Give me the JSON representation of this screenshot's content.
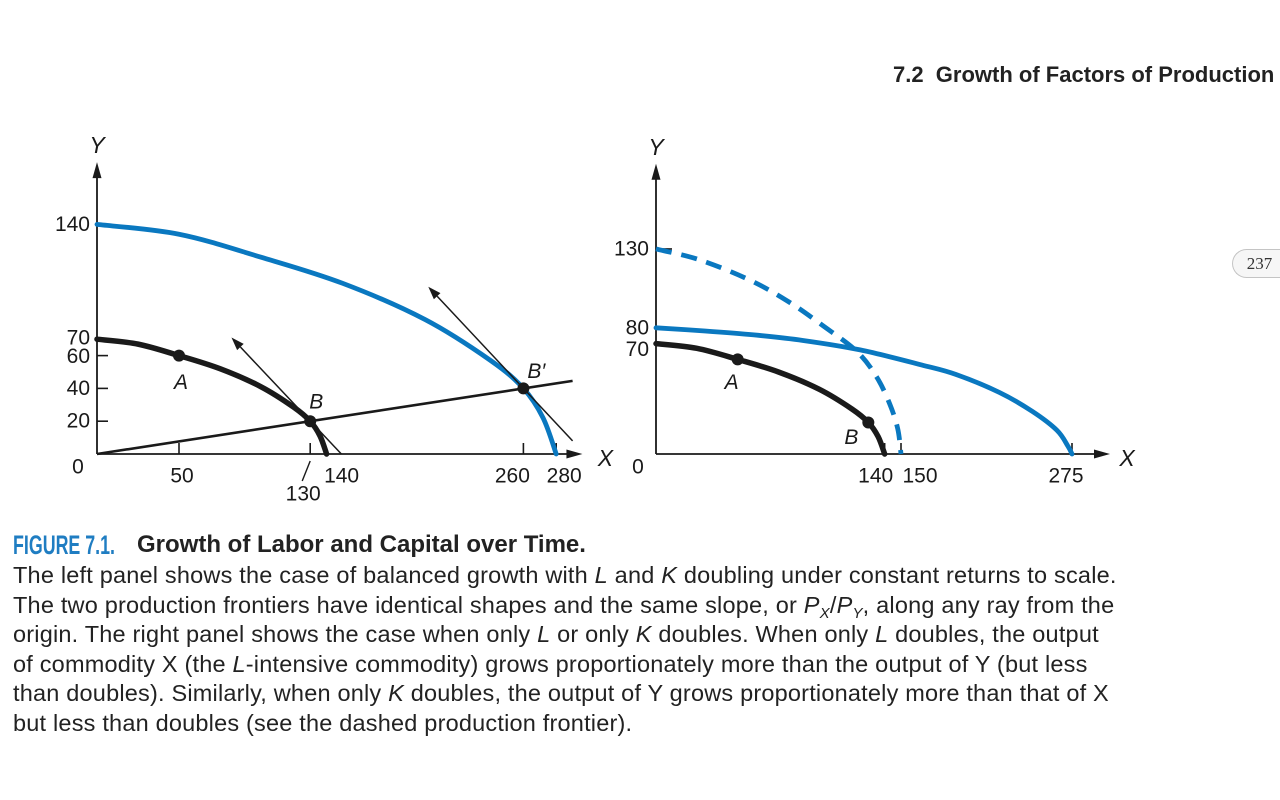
{
  "page": {
    "section_header": "7.2  Growth of Factors of Production",
    "page_number": "237"
  },
  "colors": {
    "caption_label_blue": "#1f7dc2",
    "frontier_blue": "#0a78c0",
    "ink": "#1a1a1a"
  },
  "caption": {
    "label": "FIGURE 7.1.",
    "title": "Growth of Labor and Capital over Time.",
    "body_lines": [
      [
        {
          "text": "The left panel shows the case of balanced growth with "
        },
        {
          "text": "L",
          "italic": true
        },
        {
          "text": " and "
        },
        {
          "text": "K",
          "italic": true
        },
        {
          "text": " doubling under constant returns to scale."
        }
      ],
      [
        {
          "text": "The two production frontiers have identical shapes and the same slope, or "
        },
        {
          "text": "P",
          "italic": true
        },
        {
          "text": "X",
          "italic": true,
          "sub": true
        },
        {
          "text": "/"
        },
        {
          "text": "P",
          "italic": true
        },
        {
          "text": "Y",
          "italic": true,
          "sub": true
        },
        {
          "text": ", along any ray from the"
        }
      ],
      [
        {
          "text": "origin. The right panel shows the case when only "
        },
        {
          "text": "L",
          "italic": true
        },
        {
          "text": " or only "
        },
        {
          "text": "K",
          "italic": true
        },
        {
          "text": " doubles. When only "
        },
        {
          "text": "L",
          "italic": true
        },
        {
          "text": " doubles, the output"
        }
      ],
      [
        {
          "text": "of commodity X (the "
        },
        {
          "text": "L",
          "italic": true
        },
        {
          "text": "-intensive commodity) grows proportionately more than the output of Y (but less"
        }
      ],
      [
        {
          "text": "than doubles). Similarly, when only "
        },
        {
          "text": "K",
          "italic": true
        },
        {
          "text": " doubles, the output of Y grows proportionately more than that of X"
        }
      ],
      [
        {
          "text": "but less than doubles (see the dashed production frontier)."
        }
      ]
    ]
  },
  "chart_data": [
    {
      "panel": "left",
      "type": "line",
      "title": "",
      "xlabel": "X",
      "ylabel": "Y",
      "origin_label": "0",
      "xlim": [
        0,
        296
      ],
      "ylim": [
        0,
        178
      ],
      "grid": false,
      "x_ticks": [
        50,
        130,
        140,
        260,
        280
      ],
      "y_ticks": [
        20,
        40,
        60,
        70,
        140
      ],
      "series": [
        {
          "name": "original production frontier",
          "style": "solid",
          "color": "#1a1a1a",
          "points": [
            [
              0,
              70
            ],
            [
              25,
              67
            ],
            [
              50,
              60
            ],
            [
              75,
              52
            ],
            [
              100,
              41
            ],
            [
              120,
              28.5
            ],
            [
              130,
              20
            ],
            [
              136,
              11
            ],
            [
              140,
              0
            ]
          ]
        },
        {
          "name": "frontier after L and K double",
          "style": "solid",
          "color": "#0a78c0",
          "points": [
            [
              0,
              140
            ],
            [
              50,
              134
            ],
            [
              100,
              120
            ],
            [
              150,
              104
            ],
            [
              200,
              82
            ],
            [
              240,
              57
            ],
            [
              260,
              40
            ],
            [
              272,
              22
            ],
            [
              280,
              0
            ]
          ]
        }
      ],
      "points": [
        {
          "label": "A",
          "x": 50,
          "y": 60
        },
        {
          "label": "B",
          "x": 130,
          "y": 20
        },
        {
          "label": "B′",
          "x": 260,
          "y": 40
        }
      ],
      "ray": {
        "from": [
          0,
          0
        ],
        "to": [
          290,
          44.6
        ]
      },
      "tangents": [
        {
          "at": "B",
          "from": [
            149,
            0
          ],
          "to": [
            82,
            71
          ]
        },
        {
          "at": "B′",
          "from": [
            290,
            8
          ],
          "to": [
            202,
            102
          ]
        }
      ]
    },
    {
      "panel": "right",
      "type": "line",
      "title": "",
      "xlabel": "X",
      "ylabel": "Y",
      "origin_label": "0",
      "xlim": [
        0,
        300
      ],
      "ylim": [
        0,
        184
      ],
      "grid": false,
      "x_ticks": [
        140,
        150,
        275
      ],
      "y_ticks": [
        70,
        80,
        130
      ],
      "series": [
        {
          "name": "frontier when only L doubles",
          "style": "solid",
          "color": "#0a78c0",
          "points": [
            [
              0,
              80
            ],
            [
              30,
              78
            ],
            [
              60,
              75.5
            ],
            [
              90,
              72
            ],
            [
              125,
              66
            ],
            [
              165,
              56.5
            ],
            [
              190,
              50.5
            ],
            [
              222,
              39
            ],
            [
              246,
              27
            ],
            [
              264,
              15
            ],
            [
              272,
              5
            ],
            [
              275,
              0
            ]
          ]
        },
        {
          "name": "dashed production frontier (only K doubles)",
          "style": "dashed",
          "color": "#0a78c0",
          "points": [
            [
              0,
              130
            ],
            [
              27,
              123
            ],
            [
              58,
              110
            ],
            [
              82,
              96
            ],
            [
              102,
              81.5
            ],
            [
              123,
              65
            ],
            [
              135,
              49
            ],
            [
              143,
              32
            ],
            [
              148,
              16
            ],
            [
              150,
              0
            ]
          ]
        },
        {
          "name": "original production frontier",
          "style": "solid",
          "color": "#1a1a1a",
          "points": [
            [
              0,
              70
            ],
            [
              25,
              67
            ],
            [
              50,
              60
            ],
            [
              75,
              52
            ],
            [
              100,
              41
            ],
            [
              120,
              28.5
            ],
            [
              130,
              20
            ],
            [
              136,
              11
            ],
            [
              140,
              0
            ]
          ]
        }
      ],
      "points": [
        {
          "label": "A",
          "x": 50,
          "y": 60
        },
        {
          "label": "B",
          "x": 130,
          "y": 20
        }
      ]
    }
  ]
}
